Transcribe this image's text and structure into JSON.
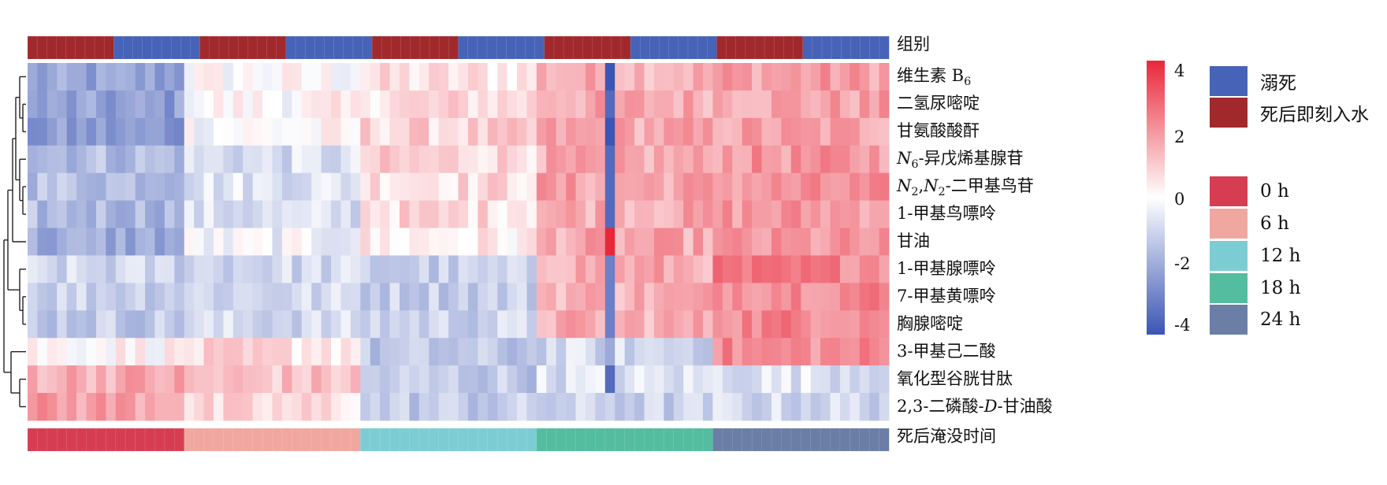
{
  "chart_data": {
    "type": "heatmap",
    "top_annotation": {
      "label": "组别",
      "segments": [
        {
          "group": "死后即刻入水",
          "count": 9
        },
        {
          "group": "溺死",
          "count": 9
        },
        {
          "group": "死后即刻入水",
          "count": 9
        },
        {
          "group": "溺死",
          "count": 9
        },
        {
          "group": "死后即刻入水",
          "count": 9
        },
        {
          "group": "溺死",
          "count": 9
        },
        {
          "group": "死后即刻入水",
          "count": 9
        },
        {
          "group": "溺死",
          "count": 9
        },
        {
          "group": "死后即刻入水",
          "count": 9
        },
        {
          "group": "溺死",
          "count": 9
        }
      ]
    },
    "bottom_annotation": {
      "label": "死后淹没时间",
      "segments": [
        {
          "level": "0 h",
          "count": 16
        },
        {
          "level": "6 h",
          "count": 18
        },
        {
          "level": "12 h",
          "count": 18
        },
        {
          "level": "18 h",
          "count": 18
        },
        {
          "level": "24 h",
          "count": 18
        }
      ]
    },
    "rows": [
      {
        "html": "维生素 B<sub>6</sub>",
        "text": "维生素 B6"
      },
      {
        "html": "二氢尿嘧啶",
        "text": "二氢尿嘧啶"
      },
      {
        "html": "甘氨酸酸酐",
        "text": "甘氨酸酸酐"
      },
      {
        "html": "<i>N</i><sub>6</sub>-异戊烯基腺苷",
        "text": "N6-异戊烯基腺苷"
      },
      {
        "html": "<i>N</i><sub>2</sub>,<i>N</i><sub>2</sub>-二甲基鸟苷",
        "text": "N2,N2-二甲基鸟苷"
      },
      {
        "html": "1-甲基鸟嘌呤",
        "text": "1-甲基鸟嘌呤"
      },
      {
        "html": "甘油",
        "text": "甘油"
      },
      {
        "html": "1-甲基腺嘌呤",
        "text": "1-甲基腺嘌呤"
      },
      {
        "html": "7-甲基黄嘌呤",
        "text": "7-甲基黄嘌呤"
      },
      {
        "html": "胸腺嘧啶",
        "text": "胸腺嘧啶"
      },
      {
        "html": "3-甲基己二酸",
        "text": "3-甲基己二酸"
      },
      {
        "html": "氧化型谷胱甘肽",
        "text": "氧化型谷胱甘肽"
      },
      {
        "html": "2,3-二磷酸-<i>D</i>-甘油酸",
        "text": "2,3-二磷酸-D-甘油酸"
      }
    ],
    "n_columns": 88,
    "row_profiles": [
      [
        -2.2,
        0.0,
        0.5,
        1.5,
        1.8
      ],
      [
        -2.3,
        0.1,
        0.7,
        1.6,
        1.7
      ],
      [
        -2.4,
        0.0,
        0.8,
        1.6,
        1.7
      ],
      [
        -1.5,
        -0.8,
        0.8,
        1.5,
        1.9
      ],
      [
        -1.4,
        -0.6,
        0.7,
        1.7,
        1.9
      ],
      [
        -1.6,
        -0.8,
        0.7,
        1.6,
        1.9
      ],
      [
        -2.0,
        -0.3,
        0.3,
        1.6,
        1.8
      ],
      [
        -1.0,
        -0.9,
        -1.2,
        1.6,
        2.3
      ],
      [
        -1.0,
        -0.9,
        -1.1,
        1.5,
        2.3
      ],
      [
        -1.2,
        -0.9,
        -1.0,
        1.5,
        2.3
      ],
      [
        0.2,
        0.6,
        -1.4,
        -0.9,
        2.1
      ],
      [
        1.6,
        1.1,
        -1.2,
        -0.7,
        -0.6
      ],
      [
        1.8,
        0.6,
        -1.2,
        -1.1,
        -0.9
      ]
    ],
    "special_column": {
      "index": 59,
      "values": [
        -4,
        -3.5,
        -4,
        -3.5,
        -3.5,
        -3.5,
        4,
        -3,
        -3,
        -3,
        -2,
        -3.5,
        -1
      ]
    },
    "colorbar": {
      "min": -4,
      "max": 4,
      "ticks": [
        4,
        2,
        0,
        -2,
        -4
      ],
      "colors": [
        "#3a55b3",
        "#ffffff",
        "#e8283a"
      ]
    },
    "legend": [
      {
        "label": "溺死",
        "color": "#4763b8"
      },
      {
        "label": "死后即刻入水",
        "color": "#a1292c"
      },
      {
        "label": "0 h",
        "color": "#d63d53"
      },
      {
        "label": "6 h",
        "color": "#f0a79f"
      },
      {
        "label": "12 h",
        "color": "#7ccdd3"
      },
      {
        "label": "18 h",
        "color": "#54bd9f"
      },
      {
        "label": "24 h",
        "color": "#6a7ea6"
      }
    ]
  }
}
